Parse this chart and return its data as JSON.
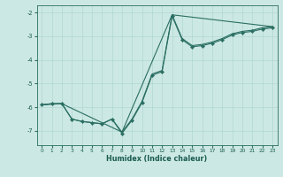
{
  "xlabel": "Humidex (Indice chaleur)",
  "bg_color": "#cce8e4",
  "line_color": "#2a6e62",
  "grid_color": "#b0d8d0",
  "xlim": [
    -0.5,
    23.5
  ],
  "ylim": [
    -7.6,
    -1.7
  ],
  "yticks": [
    -7,
    -6,
    -5,
    -4,
    -3,
    -2
  ],
  "xticks": [
    0,
    1,
    2,
    3,
    4,
    5,
    6,
    7,
    8,
    9,
    10,
    11,
    12,
    13,
    14,
    15,
    16,
    17,
    18,
    19,
    20,
    21,
    22,
    23
  ],
  "line1_x": [
    0,
    1,
    2,
    3,
    4,
    5,
    6,
    7,
    8,
    9,
    10,
    11,
    12,
    13,
    14,
    15,
    16,
    17,
    18,
    19,
    20,
    21,
    22,
    23
  ],
  "line1_y": [
    -5.9,
    -5.85,
    -5.85,
    -6.5,
    -6.6,
    -6.65,
    -6.7,
    -6.5,
    -7.1,
    -6.55,
    -5.8,
    -4.65,
    -4.5,
    -2.15,
    -3.15,
    -3.45,
    -3.4,
    -3.3,
    -3.15,
    -2.95,
    -2.85,
    -2.8,
    -2.7,
    -2.65
  ],
  "line2_x": [
    0,
    1,
    2,
    3,
    4,
    5,
    6,
    7,
    8,
    9,
    10,
    11,
    12,
    13,
    14,
    15,
    16,
    17,
    18,
    19,
    20,
    21,
    22,
    23
  ],
  "line2_y": [
    -5.9,
    -5.85,
    -5.85,
    -6.5,
    -6.6,
    -6.65,
    -6.7,
    -6.5,
    -7.05,
    -6.5,
    -5.75,
    -4.6,
    -4.45,
    -2.1,
    -3.1,
    -3.4,
    -3.35,
    -3.25,
    -3.1,
    -2.9,
    -2.8,
    -2.75,
    -2.65,
    -2.6
  ],
  "line3_x": [
    0,
    2,
    8,
    13,
    23
  ],
  "line3_y": [
    -5.9,
    -5.85,
    -7.05,
    -2.1,
    -2.6
  ],
  "marker_x": [
    0,
    1,
    2,
    3,
    4,
    5,
    6,
    7,
    8,
    9,
    10,
    11,
    12,
    13,
    14,
    15,
    16,
    17,
    18,
    19,
    20,
    21,
    22,
    23
  ],
  "marker_y": [
    -5.9,
    -5.85,
    -5.85,
    -6.5,
    -6.6,
    -6.65,
    -6.7,
    -6.5,
    -7.1,
    -6.55,
    -5.8,
    -4.65,
    -4.5,
    -2.15,
    -3.15,
    -3.45,
    -3.4,
    -3.3,
    -3.15,
    -2.95,
    -2.85,
    -2.8,
    -2.7,
    -2.65
  ]
}
